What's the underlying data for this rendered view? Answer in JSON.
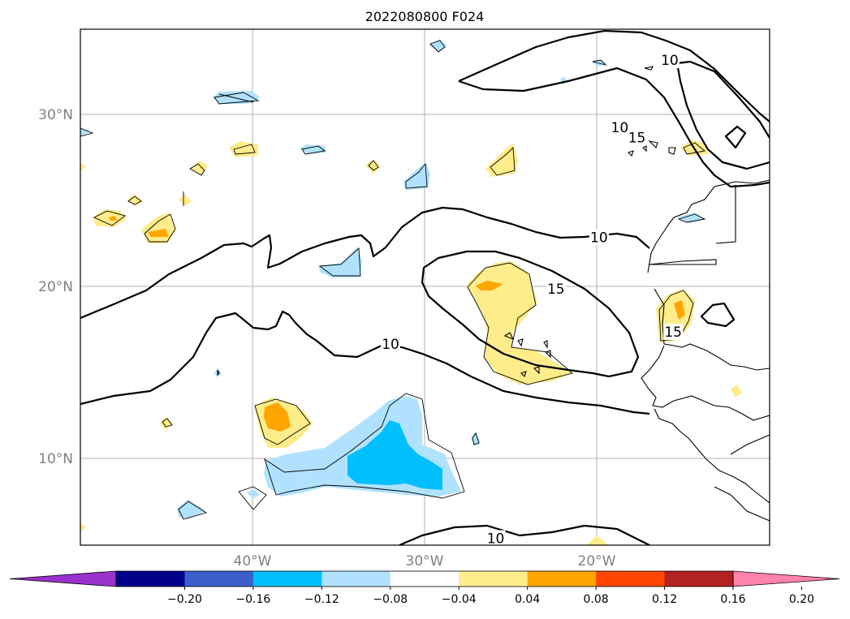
{
  "title": "2022080800 F024",
  "map": {
    "extent": {
      "lon_min": -49,
      "lon_max": -9,
      "lat_min": 5,
      "lat_max": 35
    },
    "lat_lines": [
      10,
      20,
      30
    ],
    "lon_lines": [
      -40,
      -30,
      -20
    ],
    "lat_labels": [
      "10°N",
      "20°N",
      "30°N"
    ],
    "lon_labels": [
      "40°W",
      "30°W",
      "20°W"
    ]
  },
  "contour_labels": [
    {
      "text": "10",
      "lon": -14.8,
      "lat": 33.2
    },
    {
      "text": "10",
      "lon": -17.7,
      "lat": 29.3
    },
    {
      "text": "15",
      "lon": -16.7,
      "lat": 28.7
    },
    {
      "text": "10",
      "lon": -18.9,
      "lat": 22.9
    },
    {
      "text": "15",
      "lon": -21.4,
      "lat": 19.9
    },
    {
      "text": "15",
      "lon": -14.6,
      "lat": 17.4
    },
    {
      "text": "10",
      "lon": -31.0,
      "lat": 16.7
    },
    {
      "text": "10",
      "lon": -24.9,
      "lat": 5.4
    }
  ],
  "colorbar": {
    "colors": [
      "#9932cc",
      "#00008b",
      "#3a5fcd",
      "#00bfff",
      "#b0e2ff",
      "#ffffff",
      "#ffec8b",
      "#ffa500",
      "#ff4500",
      "#b22222",
      "#ff82ab"
    ],
    "tick_labels": [
      "−0.20",
      "−0.16",
      "−0.12",
      "−0.08",
      "−0.04",
      "0.04",
      "0.08",
      "0.12",
      "0.16",
      "0.20"
    ]
  },
  "fill_colors": {
    "light_blue": "#b0e2ff",
    "blue": "#00bfff",
    "light_yellow": "#ffec8b",
    "orange": "#ffa500"
  }
}
